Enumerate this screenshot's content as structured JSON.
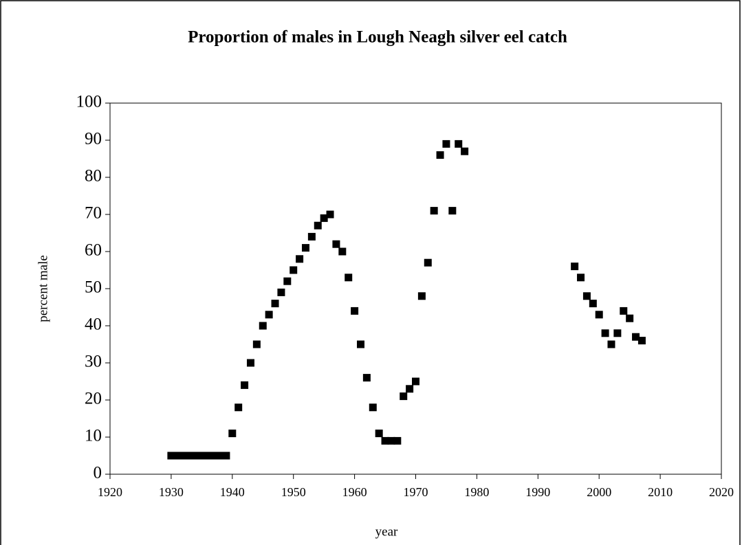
{
  "chart_data": {
    "type": "scatter",
    "title": "Proportion of males in Lough Neagh silver eel catch",
    "x_label": "year",
    "y_label": "percent male",
    "series": [
      {
        "name": "percent male",
        "color": "#000000",
        "x": [
          1930,
          1931,
          1932,
          1933,
          1934,
          1935,
          1936,
          1937,
          1938,
          1939,
          1940,
          1941,
          1942,
          1943,
          1944,
          1945,
          1946,
          1947,
          1948,
          1949,
          1950,
          1951,
          1952,
          1953,
          1954,
          1955,
          1956,
          1957,
          1958,
          1959,
          1960,
          1961,
          1962,
          1963,
          1964,
          1965,
          1966,
          1967,
          1968,
          1969,
          1970,
          1971,
          1972,
          1973,
          1974,
          1975,
          1976,
          1977,
          1978,
          1996,
          1997,
          1998,
          1999,
          2000,
          2001,
          2002,
          2003,
          2004,
          2005,
          2006,
          2007
        ],
        "values": [
          5,
          5,
          5,
          5,
          5,
          5,
          5,
          5,
          5,
          5,
          11,
          18,
          24,
          30,
          35,
          40,
          43,
          46,
          49,
          52,
          55,
          58,
          61,
          64,
          67,
          69,
          70,
          62,
          60,
          53,
          44,
          35,
          26,
          18,
          11,
          9,
          9,
          9,
          21,
          23,
          25,
          48,
          57,
          71,
          86,
          89,
          71,
          89,
          87,
          56,
          53,
          48,
          46,
          43,
          38,
          35,
          38,
          44,
          42,
          37,
          36
        ]
      }
    ],
    "xlim": [
      1920,
      2020
    ],
    "xticks": [
      1920,
      1930,
      1940,
      1950,
      1960,
      1970,
      1980,
      1990,
      2000,
      2010,
      2020
    ],
    "ylim": [
      0,
      100
    ],
    "yticks": [
      0,
      10,
      20,
      30,
      40,
      50,
      60,
      70,
      80,
      90,
      100
    ]
  }
}
